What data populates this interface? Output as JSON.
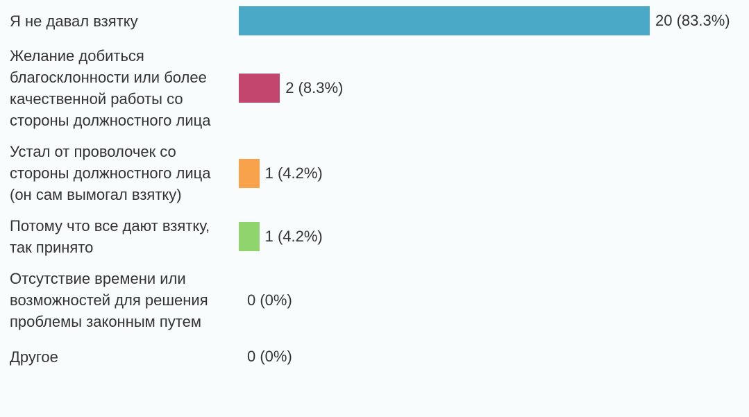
{
  "chart_data": {
    "type": "bar",
    "orientation": "horizontal",
    "categories": [
      "Я не давал взятку",
      "Желание добиться благосклонности или более качественной работы со стороны должностного лица",
      "Устал от проволочек со стороны должностного лица (он сам вымогал взятку)",
      "Потому что все дают взятку, так принято",
      "Отсутствие времени или возможностей для решения проблемы законным путем",
      "Другое"
    ],
    "values": [
      20,
      2,
      1,
      1,
      0,
      0
    ],
    "value_labels": [
      "20 (83.3%)",
      "2 (8.3%)",
      "1 (4.2%)",
      "1 (4.2%)",
      "0 (0%)",
      "0 (0%)"
    ],
    "colors": [
      "#4ba9c8",
      "#c3466f",
      "#f8a34c",
      "#8fd46c",
      "#cccccc",
      "#cccccc"
    ]
  }
}
